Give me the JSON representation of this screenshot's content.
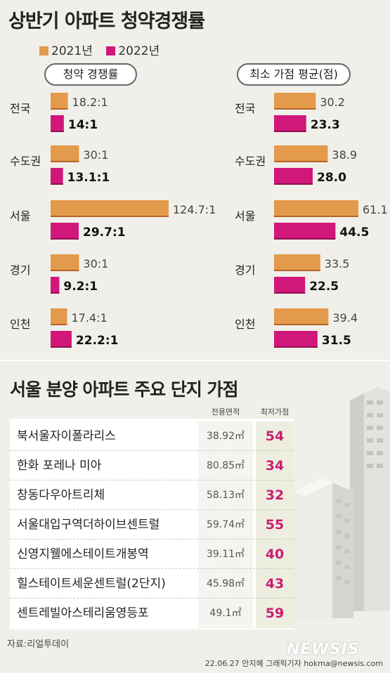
{
  "title": "상반기 아파트 청약경쟁률",
  "legend": [
    {
      "label": "2021년",
      "color": "#e39a4a"
    },
    {
      "label": "2022년",
      "color": "#d1187a"
    }
  ],
  "chart_data": [
    {
      "type": "bar",
      "orientation": "horizontal",
      "title": "청약 경쟁률",
      "categories": [
        "전국",
        "수도권",
        "서울",
        "경기",
        "인천"
      ],
      "series": [
        {
          "name": "2021년",
          "values": [
            18.2,
            30,
            124.7,
            30,
            17.4
          ],
          "labels": [
            "18.2:1",
            "30:1",
            "124.7:1",
            "30:1",
            "17.4:1"
          ]
        },
        {
          "name": "2022년",
          "values": [
            14,
            13.1,
            29.7,
            9.2,
            22.2
          ],
          "labels": [
            "14:1",
            "13.1:1",
            "29.7:1",
            "9.2:1",
            "22.2:1"
          ]
        }
      ],
      "xlim": [
        0,
        124.7
      ]
    },
    {
      "type": "bar",
      "orientation": "horizontal",
      "title": "최소 가점 평균(점)",
      "categories": [
        "전국",
        "수도권",
        "서울",
        "경기",
        "인천"
      ],
      "series": [
        {
          "name": "2021년",
          "values": [
            30.2,
            38.9,
            61.1,
            33.5,
            39.4
          ],
          "labels": [
            "30.2",
            "38.9",
            "61.1",
            "33.5",
            "39.4"
          ]
        },
        {
          "name": "2022년",
          "values": [
            23.3,
            28.0,
            44.5,
            22.5,
            31.5
          ],
          "labels": [
            "23.3",
            "28.0",
            "44.5",
            "22.5",
            "31.5"
          ]
        }
      ],
      "xlim": [
        0,
        61.1
      ]
    }
  ],
  "table": {
    "title": "서울 분양 아파트 주요 단지 가점",
    "headers": [
      "전용면적",
      "최저가점"
    ],
    "rows": [
      {
        "name": "북서울자이폴라리스",
        "area": "38.92㎡",
        "score": "54"
      },
      {
        "name": "한화 포레나 미아",
        "area": "80.85㎡",
        "score": "34"
      },
      {
        "name": "창동다우아트리체",
        "area": "58.13㎡",
        "score": "32"
      },
      {
        "name": "서울대입구역더하이브센트럴",
        "area": "59.74㎡",
        "score": "55"
      },
      {
        "name": "신영지웰에스테이트개봉역",
        "area": "39.11㎡",
        "score": "40"
      },
      {
        "name": "힐스테이트세운센트럴(2단지)",
        "area": "45.98㎡",
        "score": "43"
      },
      {
        "name": "센트레빌아스테리움영등포",
        "area": "49.1㎡",
        "score": "59"
      }
    ]
  },
  "source": "자료:리얼투데이",
  "credit": "22.06.27 안지혜 그래픽기자 hokma@newsis.com",
  "logo": "NEWSIS"
}
